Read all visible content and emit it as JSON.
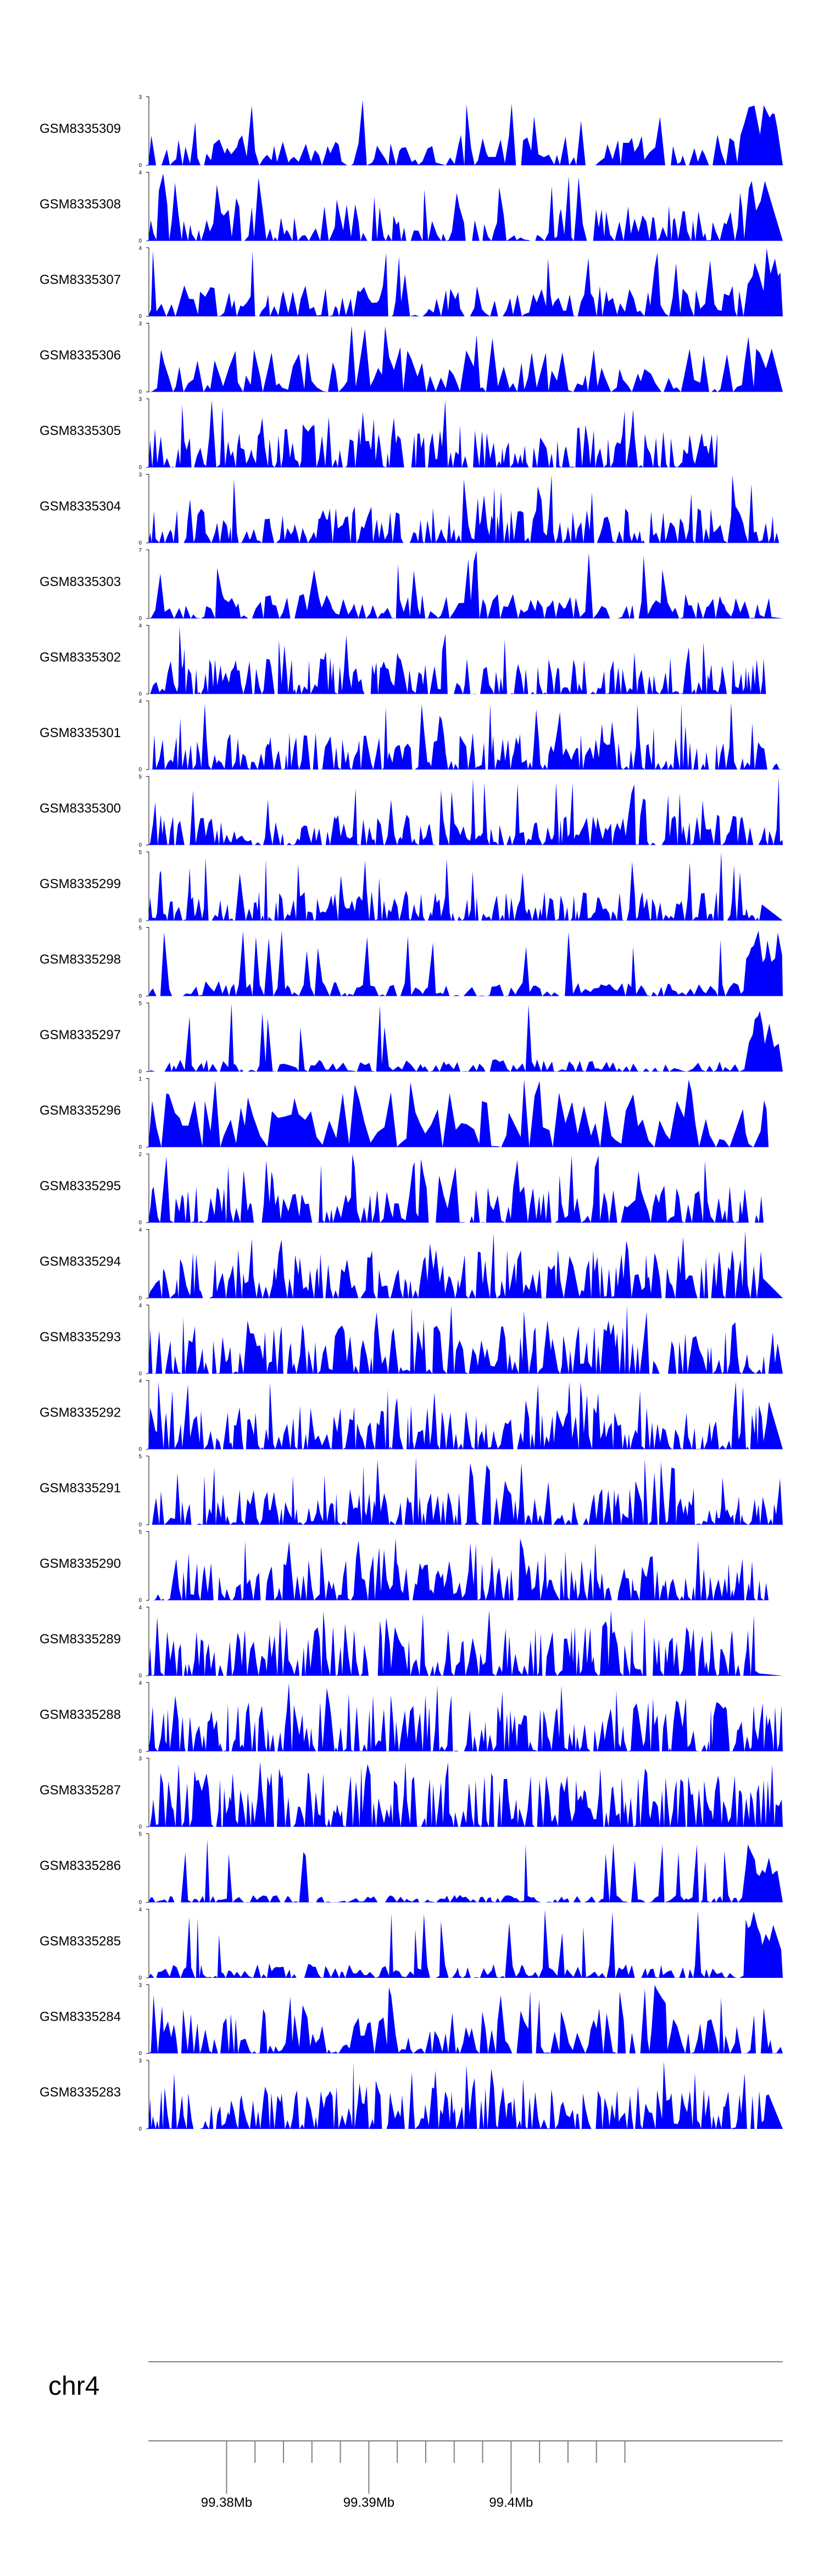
{
  "chart_data": {
    "type": "area",
    "fill_color": "#0000ff",
    "axis_color": "#000000",
    "chromosome": "chr4",
    "genomic_axis": {
      "xlim_mb": [
        99.3745,
        99.4191
      ],
      "ticks_mb": [
        99.38,
        99.382,
        99.384,
        99.386,
        99.388,
        99.39,
        99.392,
        99.394,
        99.396,
        99.398,
        99.4,
        99.402,
        99.404,
        99.406,
        99.408
      ],
      "labels": [
        {
          "position_mb": 99.38,
          "text": "99.38Mb"
        },
        {
          "position_mb": 99.39,
          "text": "99.39Mb"
        },
        {
          "position_mb": 99.4,
          "text": "99.4Mb"
        }
      ]
    },
    "tracks": [
      {
        "name": "GSM8335309",
        "ylim": [
          0,
          3
        ],
        "x_end_mb": 99.4191,
        "peak_at_end": true,
        "seed": 101,
        "density": 0.9,
        "baseline_level": 0.25
      },
      {
        "name": "GSM8335308",
        "ylim": [
          0,
          4
        ],
        "x_end_mb": 99.4191,
        "peak_at_end": true,
        "seed": 102,
        "density": 1.1,
        "baseline_level": 0.3
      },
      {
        "name": "GSM8335307",
        "ylim": [
          0,
          4
        ],
        "x_end_mb": 99.4191,
        "peak_at_end": true,
        "seed": 103,
        "density": 1.0,
        "baseline_level": 0.25
      },
      {
        "name": "GSM8335306",
        "ylim": [
          0,
          3
        ],
        "x_end_mb": 99.4191,
        "peak_at_end": false,
        "seed": 104,
        "density": 0.8,
        "baseline_level": 0.35
      },
      {
        "name": "GSM8335305",
        "ylim": [
          0,
          3
        ],
        "x_end_mb": 99.4145,
        "peak_at_end": false,
        "seed": 105,
        "density": 1.3,
        "baseline_level": 0.35
      },
      {
        "name": "GSM8335304",
        "ylim": [
          0,
          3
        ],
        "x_end_mb": 99.4191,
        "peak_at_end": false,
        "seed": 106,
        "density": 1.4,
        "baseline_level": 0.3
      },
      {
        "name": "GSM8335303",
        "ylim": [
          0,
          7
        ],
        "x_end_mb": 99.4191,
        "peak_at_end": false,
        "seed": 107,
        "density": 1.0,
        "baseline_level": 0.2
      },
      {
        "name": "GSM8335302",
        "ylim": [
          0,
          4
        ],
        "x_end_mb": 99.4191,
        "peak_at_end": false,
        "seed": 108,
        "density": 1.5,
        "baseline_level": 0.3
      },
      {
        "name": "GSM8335301",
        "ylim": [
          0,
          4
        ],
        "x_end_mb": 99.4191,
        "peak_at_end": false,
        "seed": 109,
        "density": 1.5,
        "baseline_level": 0.3
      },
      {
        "name": "GSM8335300",
        "ylim": [
          0,
          5
        ],
        "x_end_mb": 99.4191,
        "peak_at_end": false,
        "seed": 110,
        "density": 1.5,
        "baseline_level": 0.25
      },
      {
        "name": "GSM8335299",
        "ylim": [
          0,
          5
        ],
        "x_end_mb": 99.4191,
        "peak_at_end": false,
        "seed": 111,
        "density": 1.5,
        "baseline_level": 0.25
      },
      {
        "name": "GSM8335298",
        "ylim": [
          0,
          5
        ],
        "x_end_mb": 99.4191,
        "peak_at_end": true,
        "seed": 112,
        "density": 1.0,
        "baseline_level": 0.12
      },
      {
        "name": "GSM8335297",
        "ylim": [
          0,
          5
        ],
        "x_end_mb": 99.4191,
        "peak_at_end": true,
        "seed": 113,
        "density": 1.0,
        "baseline_level": 0.1
      },
      {
        "name": "GSM8335296",
        "ylim": [
          0,
          1
        ],
        "x_end_mb": 99.4181,
        "peak_at_end": false,
        "seed": 114,
        "density": 0.7,
        "baseline_level": 0.45
      },
      {
        "name": "GSM8335295",
        "ylim": [
          0,
          2
        ],
        "x_end_mb": 99.4181,
        "peak_at_end": false,
        "seed": 115,
        "density": 1.2,
        "baseline_level": 0.3
      },
      {
        "name": "GSM8335294",
        "ylim": [
          0,
          4
        ],
        "x_end_mb": 99.4191,
        "peak_at_end": false,
        "seed": 116,
        "density": 1.4,
        "baseline_level": 0.4
      },
      {
        "name": "GSM8335293",
        "ylim": [
          0,
          4
        ],
        "x_end_mb": 99.4191,
        "peak_at_end": false,
        "seed": 117,
        "density": 1.4,
        "baseline_level": 0.4
      },
      {
        "name": "GSM8335292",
        "ylim": [
          0,
          4
        ],
        "x_end_mb": 99.4191,
        "peak_at_end": false,
        "seed": 118,
        "density": 1.5,
        "baseline_level": 0.35
      },
      {
        "name": "GSM8335291",
        "ylim": [
          0,
          5
        ],
        "x_end_mb": 99.4191,
        "peak_at_end": false,
        "seed": 119,
        "density": 1.5,
        "baseline_level": 0.3
      },
      {
        "name": "GSM8335290",
        "ylim": [
          0,
          5
        ],
        "x_end_mb": 99.4181,
        "peak_at_end": false,
        "seed": 120,
        "density": 1.5,
        "baseline_level": 0.35
      },
      {
        "name": "GSM8335289",
        "ylim": [
          0,
          4
        ],
        "x_end_mb": 99.4191,
        "peak_at_end": false,
        "seed": 121,
        "density": 1.4,
        "baseline_level": 0.4
      },
      {
        "name": "GSM8335288",
        "ylim": [
          0,
          4
        ],
        "x_end_mb": 99.4191,
        "peak_at_end": false,
        "seed": 122,
        "density": 1.6,
        "baseline_level": 0.4
      },
      {
        "name": "GSM8335287",
        "ylim": [
          0,
          3
        ],
        "x_end_mb": 99.4191,
        "peak_at_end": false,
        "seed": 123,
        "density": 1.6,
        "baseline_level": 0.45
      },
      {
        "name": "GSM8335286",
        "ylim": [
          0,
          5
        ],
        "x_end_mb": 99.4191,
        "peak_at_end": true,
        "seed": 124,
        "density": 1.2,
        "baseline_level": 0.06
      },
      {
        "name": "GSM8335285",
        "ylim": [
          0,
          4
        ],
        "x_end_mb": 99.4191,
        "peak_at_end": true,
        "seed": 125,
        "density": 1.2,
        "baseline_level": 0.12
      },
      {
        "name": "GSM8335284",
        "ylim": [
          0,
          3
        ],
        "x_end_mb": 99.4191,
        "peak_at_end": false,
        "seed": 126,
        "density": 1.1,
        "baseline_level": 0.35
      },
      {
        "name": "GSM8335283",
        "ylim": [
          0,
          3
        ],
        "x_end_mb": 99.4191,
        "peak_at_end": false,
        "seed": 127,
        "density": 1.5,
        "baseline_level": 0.35
      }
    ]
  }
}
